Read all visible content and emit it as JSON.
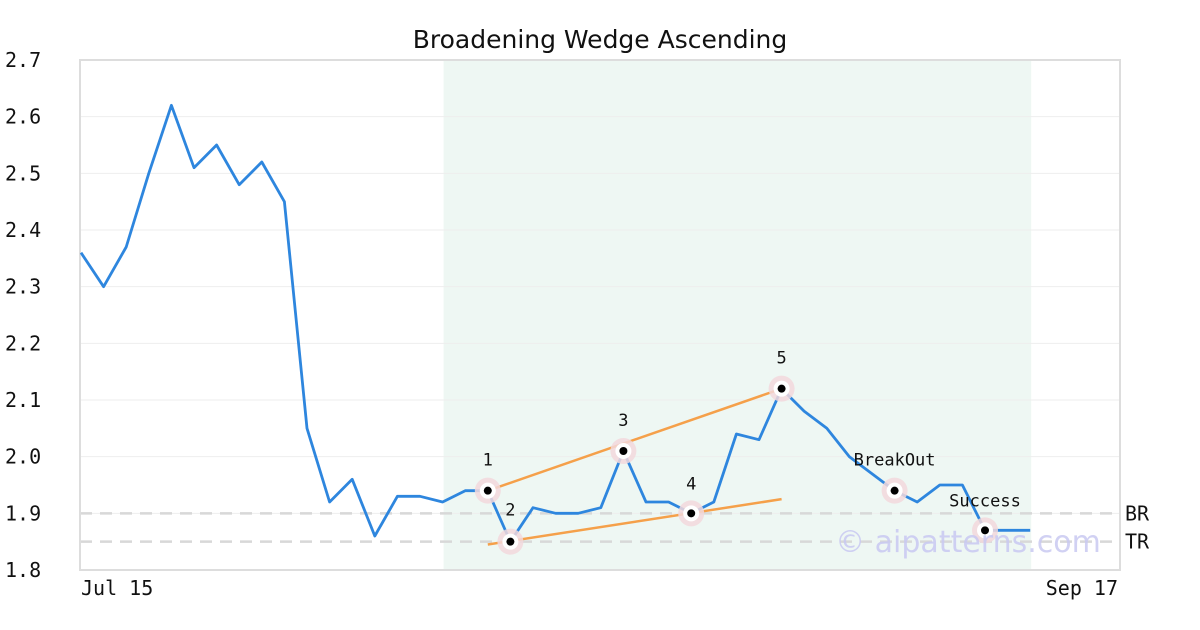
{
  "chart_data": {
    "type": "line",
    "title": "Broadening Wedge Ascending",
    "xlabel": "",
    "ylabel": "",
    "ylim": [
      1.8,
      2.7
    ],
    "yticks": [
      "1.8",
      "1.9",
      "2.0",
      "2.1",
      "2.2",
      "2.3",
      "2.4",
      "2.5",
      "2.6",
      "2.7"
    ],
    "xtick_labels": [
      "Jul 15",
      "Sep 17"
    ],
    "grid": true,
    "series": [
      {
        "values": [
          2.36,
          2.3,
          2.37,
          2.5,
          2.62,
          2.51,
          2.55,
          2.48,
          2.52,
          2.45,
          2.05,
          1.92,
          1.96,
          1.86,
          1.93,
          1.93,
          1.92,
          1.94,
          1.94,
          1.85,
          1.91,
          1.9,
          1.9,
          1.91,
          2.01,
          1.92,
          1.92,
          1.9,
          1.92,
          2.04,
          2.03,
          2.12,
          2.08,
          2.05,
          2.0,
          1.97,
          1.94,
          1.92,
          1.95,
          1.95,
          1.87,
          1.87,
          1.87
        ]
      }
    ],
    "pattern_region": {
      "start_index": 16,
      "end_index": 42
    },
    "points": [
      {
        "label": "1",
        "index": 18,
        "value": 1.94
      },
      {
        "label": "2",
        "index": 19,
        "value": 1.85
      },
      {
        "label": "3",
        "index": 24,
        "value": 2.01
      },
      {
        "label": "4",
        "index": 27,
        "value": 1.9
      },
      {
        "label": "5",
        "index": 31,
        "value": 2.12
      },
      {
        "label": "BreakOut",
        "index": 36,
        "value": 1.94
      },
      {
        "label": "Success",
        "index": 40,
        "value": 1.87
      }
    ],
    "trendlines": [
      {
        "from_index": 18,
        "from_value": 1.94,
        "to_index": 31,
        "to_value": 2.12
      },
      {
        "from_index": 18,
        "from_value": 1.845,
        "to_index": 31,
        "to_value": 1.925
      }
    ],
    "reference_lines": [
      {
        "label": "BR",
        "value": 1.9
      },
      {
        "label": "TR",
        "value": 1.85
      }
    ],
    "colors": {
      "line": "#2e86de",
      "trend": "#f5a04a",
      "region": "#eef7f3",
      "marker_halo": "#f2d8dc",
      "reference": "#d8d8d8",
      "axis": "#dddddd",
      "grid": "#eeeeee"
    }
  },
  "watermark": "© aipatterns.com"
}
